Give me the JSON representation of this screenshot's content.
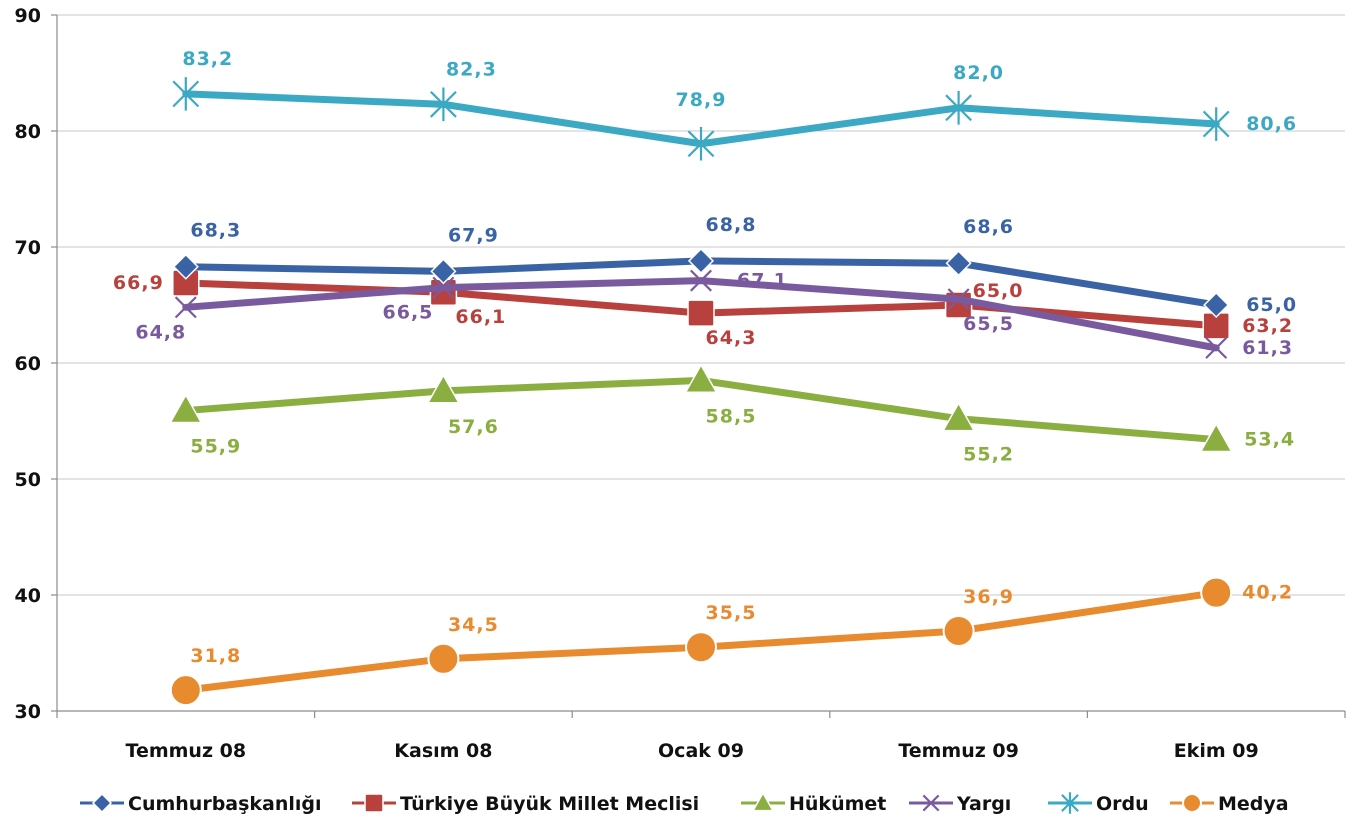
{
  "chart_data": {
    "type": "line",
    "categories": [
      "Temmuz 08",
      "Kasım 08",
      "Ocak 09",
      "Temmuz 09",
      "Ekim 09"
    ],
    "ylim": [
      30,
      90
    ],
    "yticks": [
      "30",
      "40",
      "50",
      "60",
      "70",
      "80",
      "90"
    ],
    "grid": true,
    "legend_position": "bottom",
    "series": [
      {
        "name": "Cumhurbaşkanlığı",
        "color": "#3a63a6",
        "marker": "diamond",
        "values": [
          68.3,
          67.9,
          68.8,
          68.6,
          65.0
        ],
        "labels": [
          "68,3",
          "67,9",
          "68,8",
          "68,6",
          "65,0"
        ]
      },
      {
        "name": "Türkiye Büyük Millet  Meclisi",
        "color": "#b8403d",
        "marker": "square",
        "values": [
          66.9,
          66.1,
          64.3,
          65.0,
          63.2
        ],
        "labels": [
          "66,9",
          "66,1",
          "64,3",
          "65,0",
          "63,2"
        ]
      },
      {
        "name": "Hükümet",
        "color": "#8aae3f",
        "marker": "triangle",
        "values": [
          55.9,
          57.6,
          58.5,
          55.2,
          53.4
        ],
        "labels": [
          "55,9",
          "57,6",
          "58,5",
          "55,2",
          "53,4"
        ]
      },
      {
        "name": "Yargı",
        "color": "#7a5a9e",
        "marker": "x",
        "values": [
          64.8,
          66.5,
          67.1,
          65.5,
          61.3
        ],
        "labels": [
          "64,8",
          "66,5",
          "67,1",
          "65,5",
          "61,3"
        ]
      },
      {
        "name": "Ordu",
        "color": "#3ca9c4",
        "marker": "star",
        "values": [
          83.2,
          82.3,
          78.9,
          82.0,
          80.6
        ],
        "labels": [
          "83,2",
          "82,3",
          "78,9",
          "82,0",
          "80,6"
        ]
      },
      {
        "name": "Medya",
        "color": "#e88a2e",
        "marker": "circle",
        "values": [
          31.8,
          34.5,
          35.5,
          36.9,
          40.2
        ],
        "labels": [
          "31,8",
          "34,5",
          "35,5",
          "36,9",
          "40,2"
        ]
      }
    ]
  }
}
